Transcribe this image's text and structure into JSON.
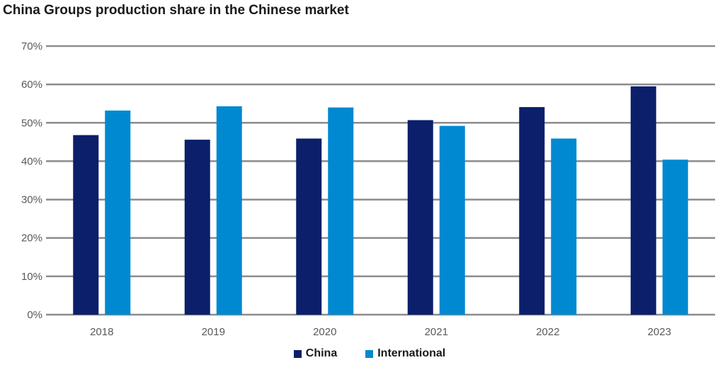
{
  "chart_data": {
    "type": "bar",
    "title": "China Groups production share in the Chinese market",
    "xlabel": "",
    "ylabel": "",
    "categories": [
      "2018",
      "2019",
      "2020",
      "2021",
      "2022",
      "2023"
    ],
    "series": [
      {
        "name": "China",
        "color": "#0b1f6b",
        "values": [
          46.8,
          45.6,
          45.9,
          50.7,
          54.1,
          59.5
        ]
      },
      {
        "name": "International",
        "color": "#0089d1",
        "values": [
          53.2,
          54.3,
          54.0,
          49.2,
          45.9,
          40.4
        ]
      }
    ],
    "ylim": [
      0,
      70
    ],
    "yticks": [
      "0%",
      "10%",
      "20%",
      "30%",
      "40%",
      "50%",
      "60%",
      "70%"
    ],
    "grid": true,
    "legend": "bottom"
  }
}
